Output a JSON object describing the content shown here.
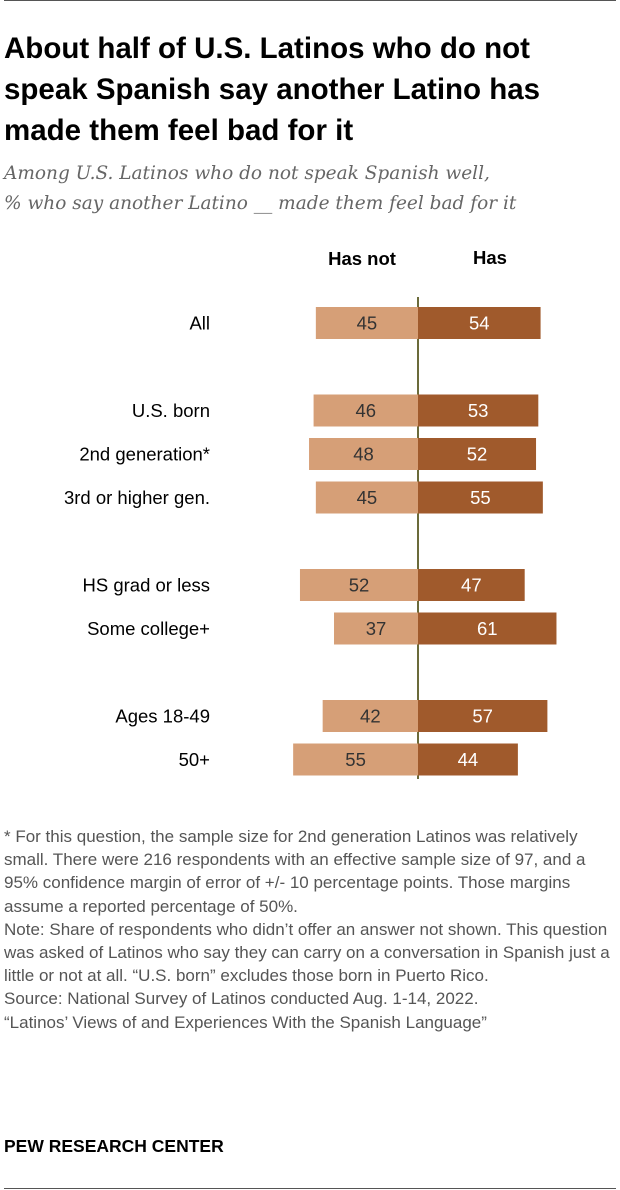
{
  "title": "About half of U.S. Latinos who do not speak Spanish say another Latino has made them feel bad for it",
  "subtitle_line1": "Among U.S. Latinos who do not speak Spanish well,",
  "subtitle_line2": "% who say another Latino __ made them feel bad for it",
  "chart_data": {
    "type": "bar",
    "orientation": "horizontal-diverging",
    "series": [
      {
        "name": "Has not",
        "color": "#d69f77",
        "values": [
          45,
          46,
          48,
          45,
          52,
          37,
          42,
          55
        ]
      },
      {
        "name": "Has",
        "color": "#a05a2c",
        "values": [
          54,
          53,
          52,
          55,
          47,
          61,
          57,
          44
        ]
      }
    ],
    "categories": [
      "All",
      "U.S. born",
      "2nd generation*",
      "3rd or higher gen.",
      "HS grad or less",
      "Some college+",
      "Ages 18-49",
      "50+"
    ],
    "groups": [
      [
        0
      ],
      [
        1,
        2,
        3
      ],
      [
        4,
        5
      ],
      [
        6,
        7
      ]
    ],
    "axis_color": "#6b6b3a",
    "grid": false
  },
  "footnote": "* For this question, the sample size for 2nd generation Latinos was relatively small. There were 216 respondents with an effective sample size of 97, and a 95% confidence margin of error of +/- 10 percentage points. Those margins assume a reported percentage of 50%.",
  "note": "Note: Share of respondents who didn’t offer an answer not shown. This question was asked of Latinos who say they can carry on a conversation in Spanish just a little or not at all. “U.S. born” excludes those born in Puerto Rico.",
  "source": "Source: National Survey of Latinos conducted Aug. 1-14, 2022.",
  "report": "“Latinos’ Views of and Experiences With the Spanish Language”",
  "brand": "PEW RESEARCH CENTER"
}
